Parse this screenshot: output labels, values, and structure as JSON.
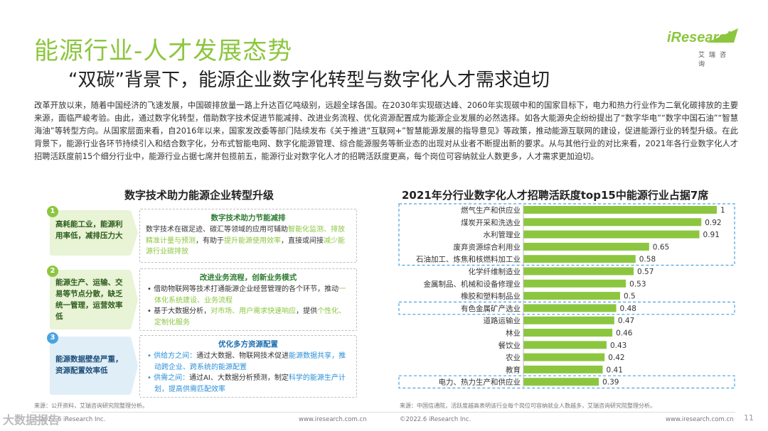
{
  "header": {
    "title": "能源行业-人才发展态势",
    "subtitle": "“双碳”背景下，能源企业数字化转型与数字化人才需求迫切",
    "logo_text": "iResearch",
    "logo_cn": "艾瑞咨询"
  },
  "intro": "改革开放以来，随着中国经济的飞速发展，中国碳排放量一路上升达百亿吨级别，远超全球各国。在2030年实现碳达峰、2060年实现碳中和的国家目标下，电力和热力行业作为二氧化碳排放的主要来源，面临严峻考验。由此，通过数字化转型，借助数字技术促进节能减排、改进业务流程、优化资源配置成为能源企业发展的必然选择。如各大能源央企纷纷提出了“数字华电”“数字中国石油”“智慧海油”等转型方向。从国家层面来看，自2016年以来，国家发改委等部门陆续发布《关于推进“互联网+”智慧能源发展的指导意见》等政策，推动能源互联网的建设，促进能源行业的转型升级。在此背景下，能源行业各环节持续引入和结合数字化，分布式智能电网、数字化能源管理、综合能源服务等新业态的出现对从业者不断提出新的要求。从与其他行业的对比来看，2021年各行业数字化人才招聘活跃度前15个细分行业中，能源行业占据七席并包揽前五，能源行业对数字化人才的招聘活跃度更高，每个岗位可容纳就业人数更多，人才需求更加迫切。",
  "left_panel": {
    "title": "数字技术助力能源企业转型升级",
    "items": [
      {
        "num": "1",
        "tag": "高耗能工业，能源利用率低，减排压力大",
        "heading": "数字技术助力节能减排",
        "body_a": "数字技术在碳足迹、碳汇等领域的应用可辅助",
        "body_hl1": "智能化监测、排放精准计量与预测",
        "body_b": "，有助于",
        "body_hl2": "提升能源使用效率",
        "body_c": "，直接或间接",
        "body_hl3": "减少能源行业碳排放"
      },
      {
        "num": "2",
        "tag": "能源生产、运输、交易等节点分散，缺乏统一管理，运营效率低",
        "heading": "改进业务流程，创新业务模式",
        "b1_a": "借助物联网等技术打通能源企业经营管理的各个环节，推动",
        "b1_hl": "一体化系统建设、业务流程",
        "b2_a": "基于大数据分析，",
        "b2_hl1": "对市场、用户需求快速响应",
        "b2_b": "，提供",
        "b2_hl2": "个性化、定制化服务"
      },
      {
        "num": "3",
        "tag": "能源数据壁垒严重，资源配置效率低",
        "heading": "优化多方资源配置",
        "b1_lbl": "供给方之间：",
        "b1_a": "通过大数据、物联网技术促进",
        "b1_hl": "能源数据共享，推动跨企业、跨系统的能源配置",
        "b2_lbl": "供需之间：",
        "b2_a": "通过AI、大数据分析预测，制定",
        "b2_hl": "科学的能源生产计划，提高供需匹配效率"
      }
    ],
    "source": "来源：公开资料，艾瑞咨询研究院整理分析。",
    "copyright": "©2022.6 iResearch Inc.",
    "url": "www.iresearch.com.cn"
  },
  "right_panel": {
    "title": "2021年分行业数字化人才招聘活跃度top15中能源行业占据7席",
    "source": "来源：中国信通院，活跃度越高表明该行业每个岗位可容纳就业人数越多，艾瑞咨询研究院整理分析。",
    "copyright": "©2022.6 iResearch Inc.",
    "url": "www.iresearch.com.cn"
  },
  "chart_data": {
    "type": "bar",
    "orientation": "horizontal",
    "title": "2021年分行业数字化人才招聘活跃度top15中能源行业占据7席",
    "categories": [
      "燃气生产和供应业",
      "煤炭开采和洗选业",
      "水利管理业",
      "废弃资源综合利用业",
      "石油加工、炼焦和核燃料加工业",
      "化学纤维制造业",
      "金属制品、机械和设备修理业",
      "橡胶和塑料制品业",
      "有色金属矿产选业",
      "道路运输业",
      "林业",
      "餐饮业",
      "农业",
      "教育",
      "电力、热力生产和供应业"
    ],
    "values": [
      1,
      0.92,
      0.91,
      0.65,
      0.58,
      0.57,
      0.53,
      0.5,
      0.48,
      0.47,
      0.46,
      0.43,
      0.42,
      0.41,
      0.39
    ],
    "value_labels": [
      "1",
      "0.92",
      "0.91",
      "0.65",
      "0.58",
      "0.57",
      "0.53",
      "0.5",
      "0.48",
      "0.47",
      "0.46",
      "0.43",
      "0.42",
      "0.41",
      "0.39"
    ],
    "highlighted": [
      true,
      true,
      true,
      true,
      true,
      false,
      false,
      false,
      true,
      false,
      false,
      false,
      false,
      false,
      true
    ],
    "xlim": [
      0,
      1
    ],
    "bar_color": "#8cc63f",
    "highlight_border_color": "#4aa3df",
    "grid": false
  },
  "page_number": "11",
  "watermark": "大数据报告"
}
